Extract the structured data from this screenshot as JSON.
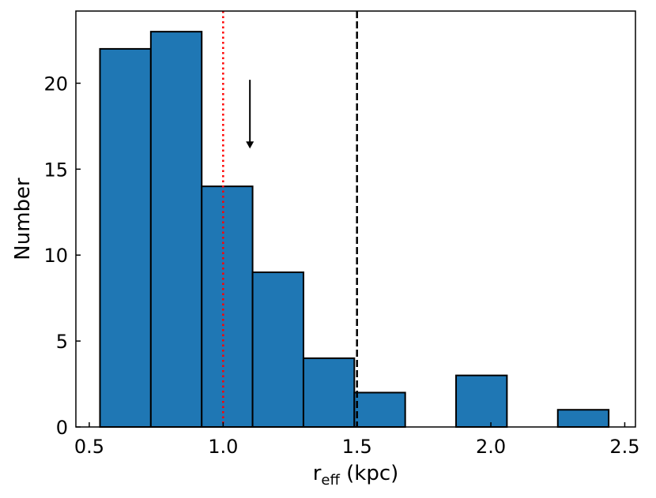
{
  "chart_data": {
    "type": "bar",
    "subtype": "histogram",
    "bin_edges": [
      0.54,
      0.73,
      0.92,
      1.11,
      1.3,
      1.49,
      1.68,
      1.87,
      2.06,
      2.25,
      2.44
    ],
    "counts": [
      22,
      23,
      14,
      9,
      4,
      2,
      0,
      3,
      0,
      1
    ],
    "xlim": [
      0.45,
      2.54
    ],
    "ylim": [
      0,
      24.2
    ],
    "xticks": [
      0.5,
      1.0,
      1.5,
      2.0,
      2.5
    ],
    "xtick_labels": [
      "0.5",
      "1.0",
      "1.5",
      "2.0",
      "2.5"
    ],
    "yticks": [
      0,
      5,
      10,
      15,
      20
    ],
    "ytick_labels": [
      "0",
      "5",
      "10",
      "15",
      "20"
    ],
    "xlabel_main": "r",
    "xlabel_sub": "eff",
    "xlabel_unit": " (kpc)",
    "ylabel": "Number",
    "bar_color": "#1f77b4",
    "edge_color": "#000000",
    "vlines": [
      {
        "x": 1.0,
        "style": "dotted",
        "color": "#ff0000"
      },
      {
        "x": 1.5,
        "style": "dashed",
        "color": "#000000"
      }
    ],
    "arrow": {
      "x": 1.1,
      "y_from": 20.2,
      "y_to": 16.2,
      "color": "#000000"
    },
    "grid": false
  }
}
